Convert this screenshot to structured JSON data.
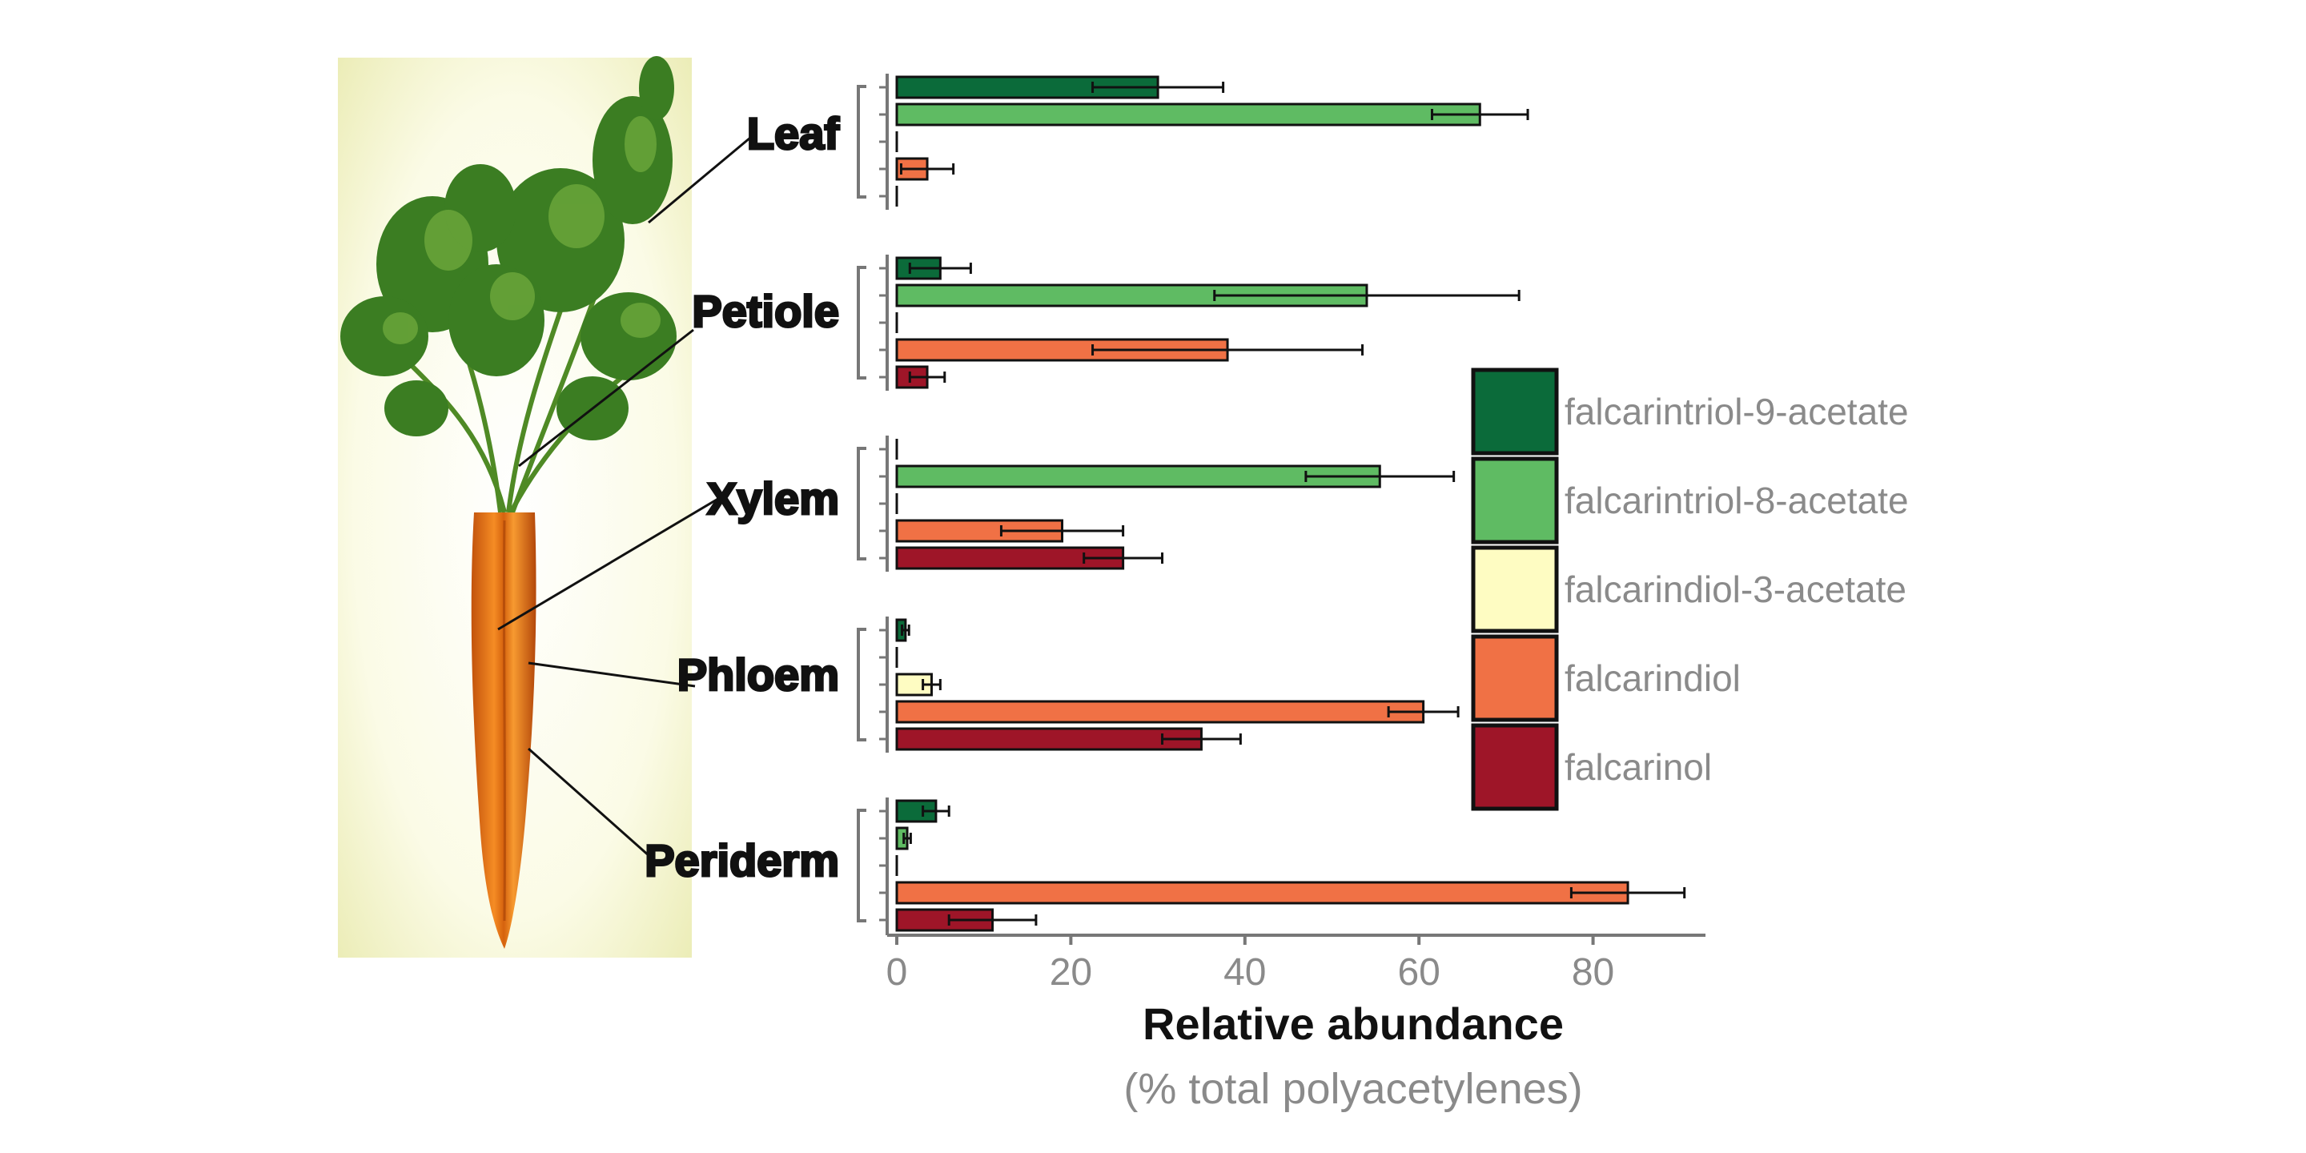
{
  "chart_data": {
    "type": "bar",
    "orientation": "horizontal",
    "groups": [
      "Leaf",
      "Petiole",
      "Xylem",
      "Phloem",
      "Periderm"
    ],
    "series": [
      {
        "name": "falcarintriol-9-acetate",
        "color": "#0b6b3a",
        "values": [
          30,
          5,
          0,
          1,
          4.5
        ],
        "errors": [
          7.5,
          3.5,
          0,
          0.4,
          1.5
        ]
      },
      {
        "name": "falcarintriol-8-acetate",
        "color": "#5fbb63",
        "values": [
          67,
          54,
          55.5,
          0,
          1.2
        ],
        "errors": [
          5.5,
          17.5,
          8.5,
          0,
          0.4
        ]
      },
      {
        "name": "falcarindiol-3-acetate",
        "color": "#fefcc2",
        "values": [
          0,
          0,
          0,
          4,
          0
        ],
        "errors": [
          0,
          0,
          0,
          1,
          0
        ]
      },
      {
        "name": "falcarindiol",
        "color": "#f07145",
        "values": [
          3.5,
          38,
          19,
          60.5,
          84
        ],
        "errors": [
          3,
          15.5,
          7,
          4,
          6.5
        ]
      },
      {
        "name": "falcarinol",
        "color": "#9e1528",
        "values": [
          0,
          3.5,
          26,
          35,
          11
        ],
        "errors": [
          0,
          2,
          4.5,
          4.5,
          5
        ]
      }
    ],
    "xlim": [
      0,
      92
    ],
    "xticks": [
      0,
      20,
      40,
      60,
      80
    ],
    "xlabel": "Relative abundance",
    "xlabel_sub": "(% total polyacetylenes)",
    "legend_position": "right"
  },
  "image": {
    "icon": "carrot-photo-icon"
  }
}
